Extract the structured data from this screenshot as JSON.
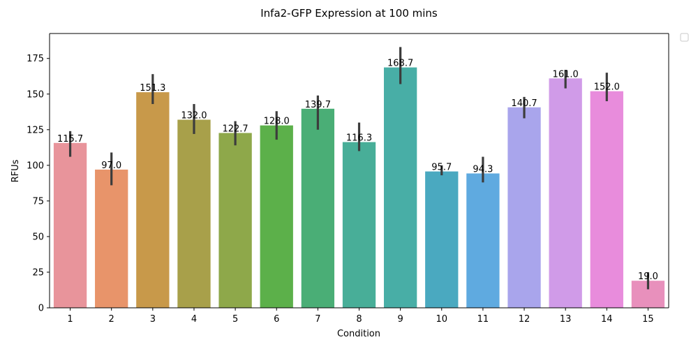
{
  "chart_data": {
    "type": "bar",
    "title": "Infa2-GFP Expression at 100 mins",
    "xlabel": "Condition",
    "ylabel": "RFUs",
    "categories": [
      "1",
      "2",
      "3",
      "4",
      "5",
      "6",
      "7",
      "8",
      "9",
      "10",
      "11",
      "12",
      "13",
      "14",
      "15"
    ],
    "values": [
      115.7,
      97.0,
      151.3,
      132.0,
      122.7,
      128.0,
      139.7,
      116.3,
      168.7,
      95.7,
      94.3,
      140.7,
      161.0,
      152.0,
      19.0
    ],
    "value_labels": [
      "115.7",
      "97.0",
      "151.3",
      "132.0",
      "122.7",
      "128.0",
      "139.7",
      "116.3",
      "168.7",
      "95.7",
      "94.3",
      "140.7",
      "161.0",
      "152.0",
      "19.0"
    ],
    "error_low": [
      106,
      86,
      143,
      122,
      114,
      118,
      125,
      110,
      157,
      93,
      88,
      133,
      154,
      145,
      13
    ],
    "error_high": [
      124,
      109,
      164,
      143,
      131,
      138,
      149,
      130,
      183,
      100,
      106,
      148,
      167,
      165,
      25
    ],
    "ylim": [
      0,
      192.5
    ],
    "yticks": [
      0,
      25,
      50,
      75,
      100,
      125,
      150,
      175
    ],
    "grid": false,
    "legend": "top-right (empty)",
    "colors": [
      "#e8949b",
      "#e8946a",
      "#c8994a",
      "#a8a04a",
      "#8ea84a",
      "#5cb04a",
      "#4aae76",
      "#48ae98",
      "#48aea6",
      "#4aa9c0",
      "#5faae0",
      "#a9a5ec",
      "#d09be8",
      "#e88cdc",
      "#e890bc"
    ],
    "error_color": "#3c3c3c"
  }
}
